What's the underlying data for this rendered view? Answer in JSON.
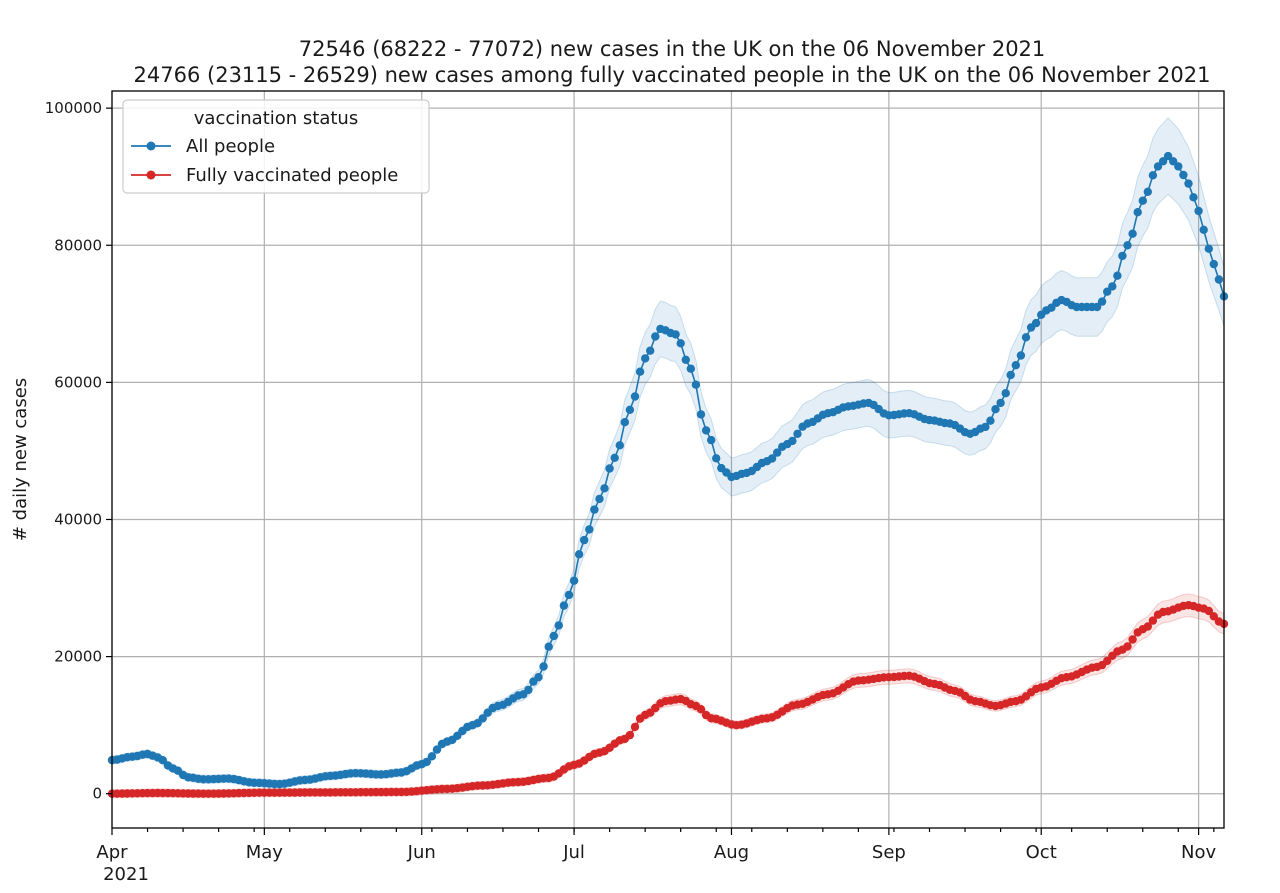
{
  "chart_data": {
    "type": "line",
    "title": [
      "72546 (68222 - 77072) new cases in the UK on the 06 November 2021",
      "24766 (23115 - 26529) new cases among fully vaccinated people in the UK on the 06 November 2021"
    ],
    "xlabel": "",
    "ylabel": "# daily new cases",
    "xlim": [
      "2021-04-01",
      "2021-11-06"
    ],
    "ylim": [
      -5000,
      102500
    ],
    "x_ticks": [
      {
        "date": "2021-04-01",
        "label": "Apr",
        "sublabel": "2021"
      },
      {
        "date": "2021-05-01",
        "label": "May"
      },
      {
        "date": "2021-06-01",
        "label": "Jun"
      },
      {
        "date": "2021-07-01",
        "label": "Jul"
      },
      {
        "date": "2021-08-01",
        "label": "Aug"
      },
      {
        "date": "2021-09-01",
        "label": "Sep"
      },
      {
        "date": "2021-10-01",
        "label": "Oct"
      },
      {
        "date": "2021-11-01",
        "label": "Nov"
      }
    ],
    "y_ticks": [
      0,
      20000,
      40000,
      60000,
      80000,
      100000
    ],
    "y_tick_labels": [
      "0",
      "20000",
      "40000",
      "60000",
      "80000",
      "100000"
    ],
    "grid": true,
    "legend": {
      "title": "vaccination status",
      "position": "top-left"
    },
    "series": [
      {
        "name": "All people",
        "color": "#1f77b4",
        "band_color": "#1f77b4",
        "marker": "circle",
        "points": [
          [
            "2021-04-01",
            4900
          ],
          [
            "2021-04-05",
            5400
          ],
          [
            "2021-04-08",
            5800
          ],
          [
            "2021-04-10",
            5300
          ],
          [
            "2021-04-13",
            3700
          ],
          [
            "2021-04-16",
            2400
          ],
          [
            "2021-04-19",
            2100
          ],
          [
            "2021-04-24",
            2200
          ],
          [
            "2021-04-29",
            1600
          ],
          [
            "2021-05-04",
            1400
          ],
          [
            "2021-05-09",
            2000
          ],
          [
            "2021-05-14",
            2600
          ],
          [
            "2021-05-19",
            3000
          ],
          [
            "2021-05-24",
            2800
          ],
          [
            "2021-05-28",
            3100
          ],
          [
            "2021-06-01",
            4300
          ],
          [
            "2021-06-06",
            7600
          ],
          [
            "2021-06-11",
            10000
          ],
          [
            "2021-06-16",
            12800
          ],
          [
            "2021-06-21",
            14500
          ],
          [
            "2021-06-24",
            17000
          ],
          [
            "2021-06-27",
            23000
          ],
          [
            "2021-06-30",
            29000
          ],
          [
            "2021-07-03",
            37000
          ],
          [
            "2021-07-06",
            43000
          ],
          [
            "2021-07-09",
            49000
          ],
          [
            "2021-07-12",
            56000
          ],
          [
            "2021-07-15",
            63500
          ],
          [
            "2021-07-18",
            67800
          ],
          [
            "2021-07-21",
            67000
          ],
          [
            "2021-07-24",
            62000
          ],
          [
            "2021-07-27",
            53000
          ],
          [
            "2021-07-30",
            47500
          ],
          [
            "2021-08-01",
            46200
          ],
          [
            "2021-08-04",
            46800
          ],
          [
            "2021-08-08",
            48500
          ],
          [
            "2021-08-12",
            51000
          ],
          [
            "2021-08-16",
            54000
          ],
          [
            "2021-08-20",
            55500
          ],
          [
            "2021-08-24",
            56500
          ],
          [
            "2021-08-28",
            57000
          ],
          [
            "2021-09-01",
            55200
          ],
          [
            "2021-09-05",
            55500
          ],
          [
            "2021-09-09",
            54500
          ],
          [
            "2021-09-13",
            54000
          ],
          [
            "2021-09-17",
            52500
          ],
          [
            "2021-09-20",
            53500
          ],
          [
            "2021-09-23",
            57000
          ],
          [
            "2021-09-26",
            62500
          ],
          [
            "2021-09-29",
            68000
          ],
          [
            "2021-10-02",
            70500
          ],
          [
            "2021-10-05",
            72000
          ],
          [
            "2021-10-08",
            71000
          ],
          [
            "2021-10-12",
            71000
          ],
          [
            "2021-10-15",
            74000
          ],
          [
            "2021-10-18",
            80000
          ],
          [
            "2021-10-21",
            86500
          ],
          [
            "2021-10-24",
            91500
          ],
          [
            "2021-10-26",
            93000
          ],
          [
            "2021-10-28",
            91500
          ],
          [
            "2021-10-30",
            89000
          ],
          [
            "2021-11-01",
            85000
          ],
          [
            "2021-11-03",
            79500
          ],
          [
            "2021-11-05",
            75000
          ],
          [
            "2021-11-06",
            72546
          ]
        ]
      },
      {
        "name": "Fully vaccinated people",
        "color": "#d62728",
        "band_color": "#d62728",
        "marker": "circle",
        "points": [
          [
            "2021-04-01",
            0
          ],
          [
            "2021-04-10",
            100
          ],
          [
            "2021-04-20",
            0
          ],
          [
            "2021-05-01",
            150
          ],
          [
            "2021-05-15",
            200
          ],
          [
            "2021-05-28",
            250
          ],
          [
            "2021-06-06",
            700
          ],
          [
            "2021-06-13",
            1200
          ],
          [
            "2021-06-20",
            1700
          ],
          [
            "2021-06-26",
            2300
          ],
          [
            "2021-07-01",
            4200
          ],
          [
            "2021-07-06",
            6000
          ],
          [
            "2021-07-11",
            8000
          ],
          [
            "2021-07-15",
            11500
          ],
          [
            "2021-07-19",
            13500
          ],
          [
            "2021-07-22",
            13800
          ],
          [
            "2021-07-25",
            12800
          ],
          [
            "2021-07-28",
            11000
          ],
          [
            "2021-08-02",
            10000
          ],
          [
            "2021-08-08",
            11000
          ],
          [
            "2021-08-14",
            13000
          ],
          [
            "2021-08-20",
            14500
          ],
          [
            "2021-08-26",
            16500
          ],
          [
            "2021-09-01",
            17000
          ],
          [
            "2021-09-05",
            17200
          ],
          [
            "2021-09-10",
            16000
          ],
          [
            "2021-09-14",
            15000
          ],
          [
            "2021-09-18",
            13500
          ],
          [
            "2021-09-22",
            12800
          ],
          [
            "2021-09-26",
            13500
          ],
          [
            "2021-10-01",
            15500
          ],
          [
            "2021-10-06",
            17000
          ],
          [
            "2021-10-12",
            18500
          ],
          [
            "2021-10-17",
            21000
          ],
          [
            "2021-10-21",
            24000
          ],
          [
            "2021-10-25",
            26500
          ],
          [
            "2021-10-30",
            27500
          ],
          [
            "2021-11-02",
            27000
          ],
          [
            "2021-11-06",
            24766
          ]
        ]
      }
    ]
  }
}
